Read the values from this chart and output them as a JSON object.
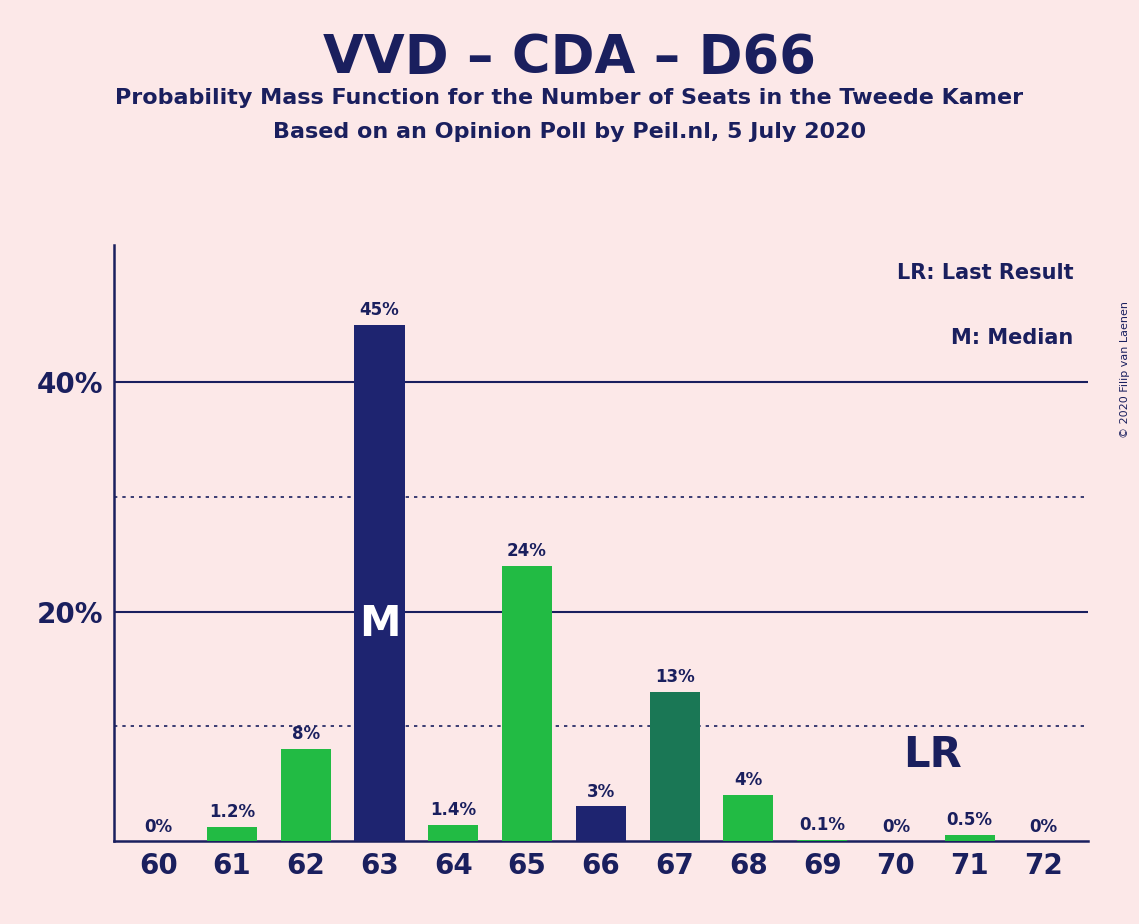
{
  "title": "VVD – CDA – D66",
  "subtitle1": "Probability Mass Function for the Number of Seats in the Tweede Kamer",
  "subtitle2": "Based on an Opinion Poll by Peil.nl, 5 July 2020",
  "copyright": "© 2020 Filip van Laenen",
  "background_color": "#fce8e8",
  "categories": [
    60,
    61,
    62,
    63,
    64,
    65,
    66,
    67,
    68,
    69,
    70,
    71,
    72
  ],
  "values": [
    0.0,
    1.2,
    8.0,
    45.0,
    1.4,
    24.0,
    3.0,
    13.0,
    4.0,
    0.1,
    0.0,
    0.5,
    0.0
  ],
  "bar_colors": [
    "#22bb44",
    "#22bb44",
    "#22bb44",
    "#1e2470",
    "#22bb44",
    "#22bb44",
    "#1e2470",
    "#1a7755",
    "#22bb44",
    "#22bb44",
    "#22bb44",
    "#22bb44",
    "#22bb44"
  ],
  "labels": [
    "0%",
    "1.2%",
    "8%",
    "45%",
    "1.4%",
    "24%",
    "3%",
    "13%",
    "4%",
    "0.1%",
    "0%",
    "0.5%",
    "0%"
  ],
  "median_idx": 3,
  "lr_idx": 11,
  "dotted_lines": [
    10,
    30
  ],
  "solid_lines": [
    20,
    40
  ],
  "ylim": [
    0,
    52
  ],
  "title_color": "#1a1f5e",
  "subtitle_color": "#1a1f5e",
  "axis_color": "#1a1f5e",
  "tick_color": "#1a1f5e",
  "navy_color": "#1a1f5e",
  "legend_lr": "LR: Last Result",
  "legend_m": "M: Median",
  "lr_text": "LR",
  "m_text": "M",
  "bar_width": 0.68
}
